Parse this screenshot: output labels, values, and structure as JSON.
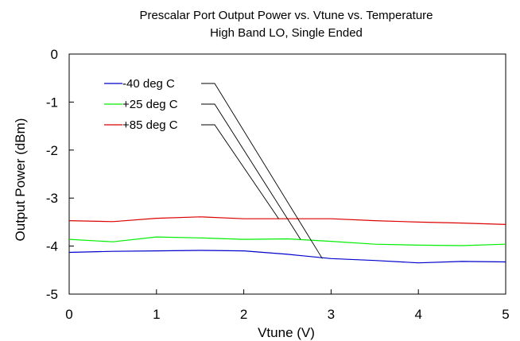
{
  "chart_data": {
    "type": "line",
    "title": "Prescalar Port Output Power vs. Vtune vs. Temperature",
    "subtitle": "High Band LO, Single Ended",
    "xlabel": "Vtune (V)",
    "ylabel": "Output Power (dBm)",
    "xlim": [
      0,
      5
    ],
    "ylim": [
      -5,
      0
    ],
    "xticks": [
      "0",
      "1",
      "2",
      "3",
      "4",
      "5"
    ],
    "yticks": [
      "0",
      "-1",
      "-2",
      "-3",
      "-4",
      "-5"
    ],
    "grid": false,
    "legend_placement": "top-left",
    "x": [
      0,
      0.5,
      1,
      1.5,
      2,
      2.5,
      3,
      3.5,
      4,
      4.5,
      5
    ],
    "series": [
      {
        "name": "-40 deg C",
        "color": "#0000cc",
        "values": [
          -4.13,
          -4.11,
          -4.1,
          -4.09,
          -4.1,
          -4.17,
          -4.26,
          -4.3,
          -4.35,
          -4.32,
          -4.33
        ]
      },
      {
        "name": "+25 deg C",
        "color": "#00ee00",
        "values": [
          -3.86,
          -3.91,
          -3.81,
          -3.83,
          -3.86,
          -3.85,
          -3.9,
          -3.96,
          -3.98,
          -3.99,
          -3.96
        ]
      },
      {
        "name": "+85 deg C",
        "color": "#dd0000",
        "values": [
          -3.47,
          -3.49,
          -3.42,
          -3.39,
          -3.43,
          -3.43,
          -3.43,
          -3.47,
          -3.5,
          -3.52,
          -3.55
        ]
      }
    ],
    "legend_callouts": [
      {
        "series": 0,
        "x": 2.9,
        "y": -4.26
      },
      {
        "series": 1,
        "x": 2.65,
        "y": -3.86
      },
      {
        "series": 2,
        "x": 2.4,
        "y": -3.43
      }
    ]
  }
}
